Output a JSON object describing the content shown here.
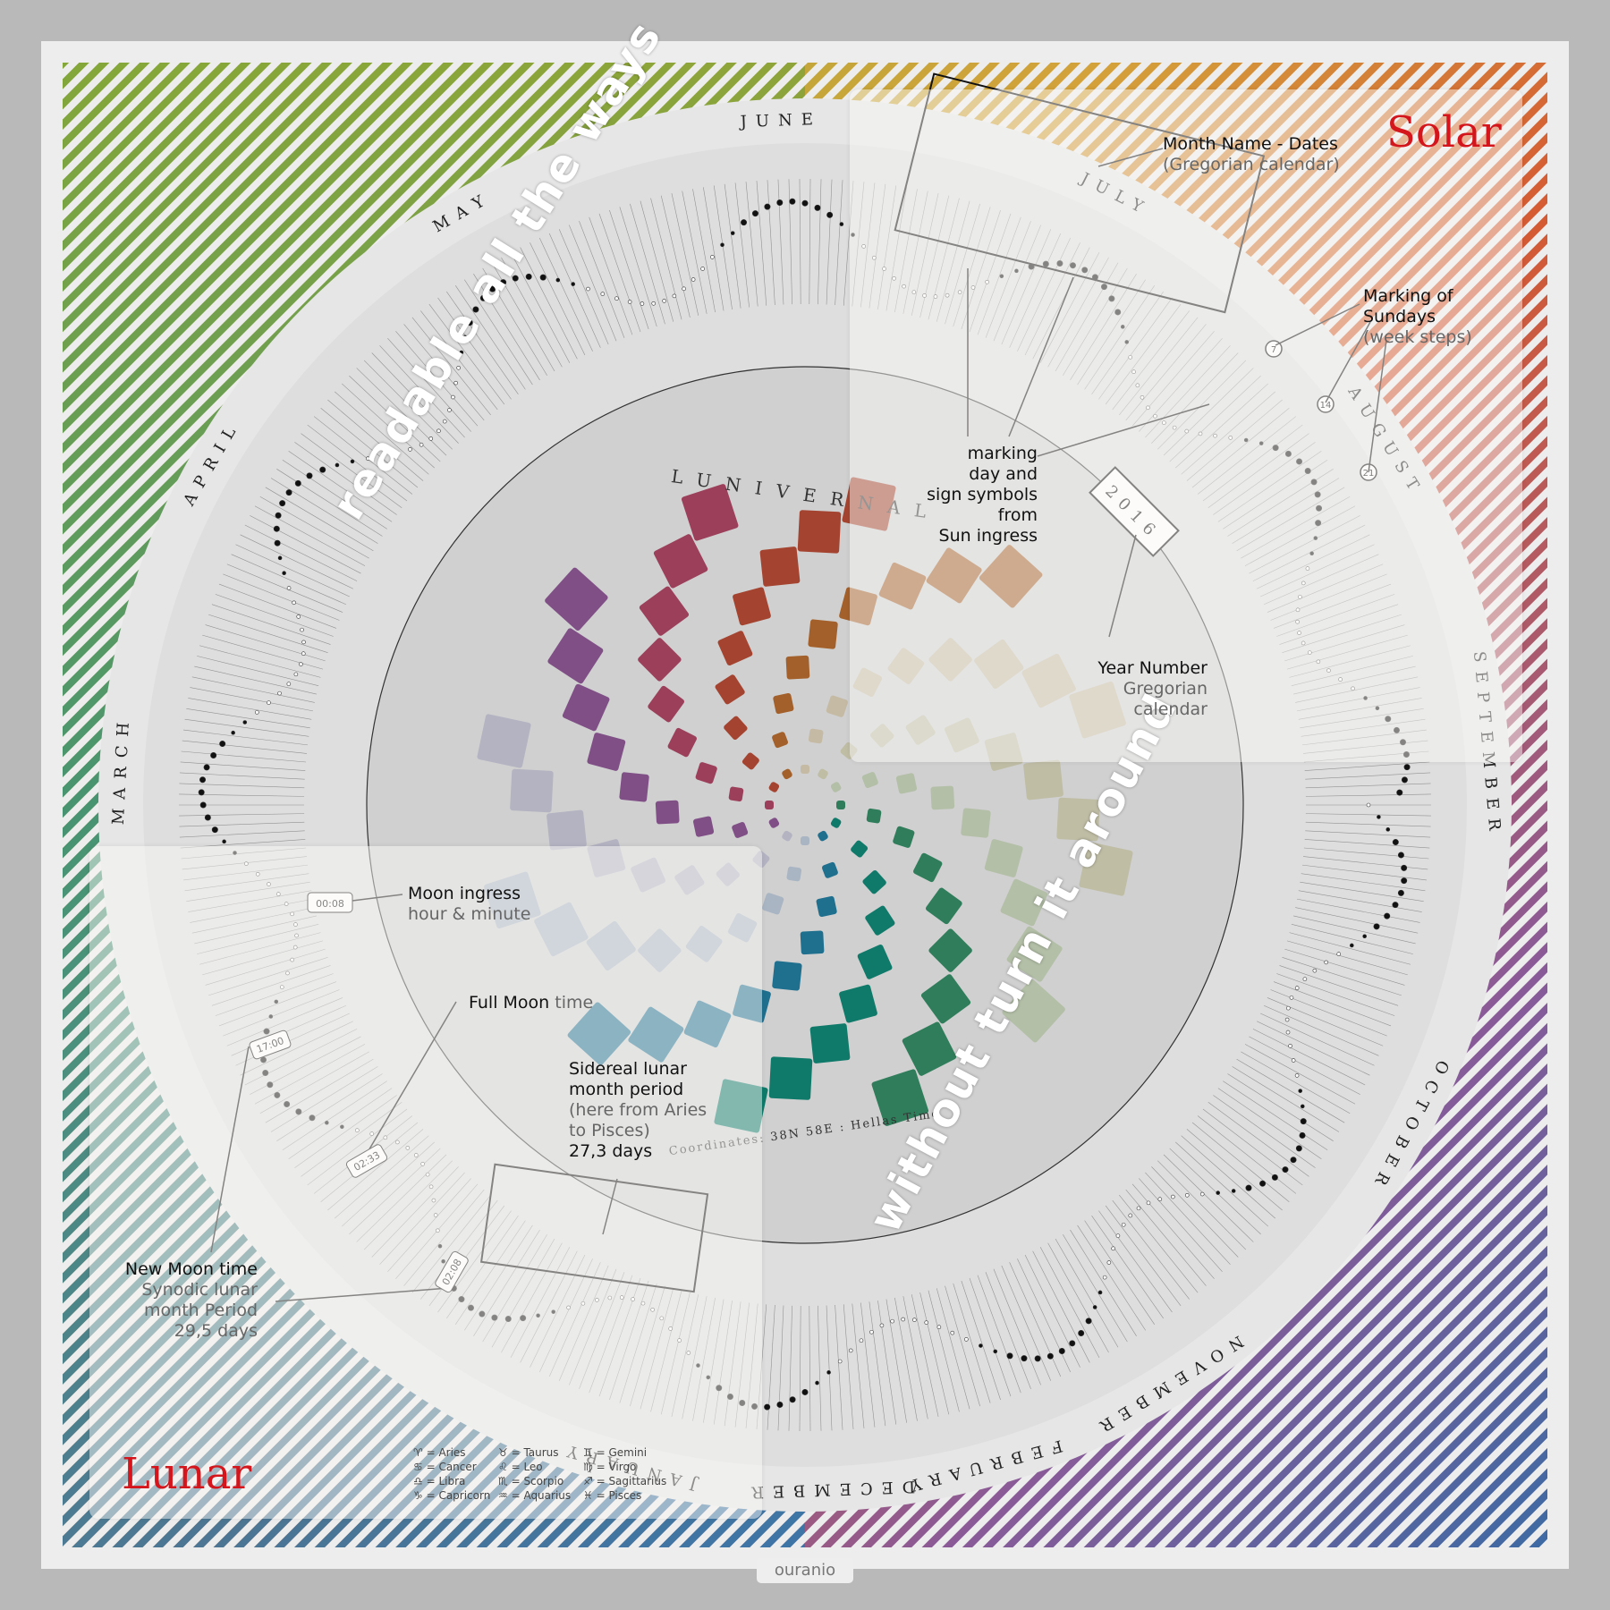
{
  "headings": {
    "solar": "Solar",
    "lunar": "Lunar"
  },
  "rotated": {
    "readable": "readable all the ways",
    "without": "without turn it around",
    "luniverse": "LUNIVERNAL",
    "coordinates": "Coordinates: 38N 58E : Hellas Time"
  },
  "year": "2016",
  "months": [
    "JANUARY",
    "FEBRUARY",
    "MARCH",
    "APRIL",
    "MAY",
    "JUNE",
    "JULY",
    "AUGUST",
    "SEPTEMBER",
    "OCTOBER",
    "NOVEMBER",
    "DECEMBER"
  ],
  "callouts": {
    "month_name": {
      "title": "Month Name - Dates",
      "sub": "(Gregorian calendar)"
    },
    "sundays": {
      "title1": "Marking of",
      "title2": "Sundays",
      "sub": "(week steps)"
    },
    "marking": {
      "l1": "marking",
      "l2": "day and",
      "l3": "sign symbols",
      "l4": "from",
      "l5": "Sun ingress"
    },
    "year_number": {
      "title": "Year Number",
      "sub1": "Gregorian",
      "sub2": "calendar"
    },
    "moon_ingress": {
      "title": "Moon ingress",
      "sub": "hour & minute",
      "example": "00:08"
    },
    "full_moon": {
      "title": "Full Moon",
      "sub": "time"
    },
    "sidereal": {
      "l1": "Sidereal lunar",
      "l2": "month period",
      "s1": "(here from Aries",
      "s2": "to Pisces)",
      "l3": "27,3 days"
    },
    "new_moon": {
      "title": "New Moon time",
      "s1": "Synodic lunar",
      "s2": "month Period",
      "s3": "29,5 days"
    }
  },
  "sundays": [
    "7",
    "14",
    "21"
  ],
  "tags": {
    "new_moon": "17:00",
    "full_moon": "02:33",
    "sidereal": "02:08"
  },
  "legend": [
    {
      "sym": "♈",
      "name": "Aries"
    },
    {
      "sym": "♉",
      "name": "Taurus"
    },
    {
      "sym": "♊",
      "name": "Gemini"
    },
    {
      "sym": "♋",
      "name": "Cancer"
    },
    {
      "sym": "♌",
      "name": "Leo"
    },
    {
      "sym": "♍",
      "name": "Virgo"
    },
    {
      "sym": "♎",
      "name": "Libra"
    },
    {
      "sym": "♏",
      "name": "Scorpio"
    },
    {
      "sym": "♐",
      "name": "Sagittarius"
    },
    {
      "sym": "♑",
      "name": "Capricorn"
    },
    {
      "sym": "♒",
      "name": "Aquarius"
    },
    {
      "sym": "♓",
      "name": "Pisces"
    }
  ],
  "logo": "ouranio",
  "colors": {
    "heading": "#d4161c",
    "ring": "#f0f0f0"
  }
}
